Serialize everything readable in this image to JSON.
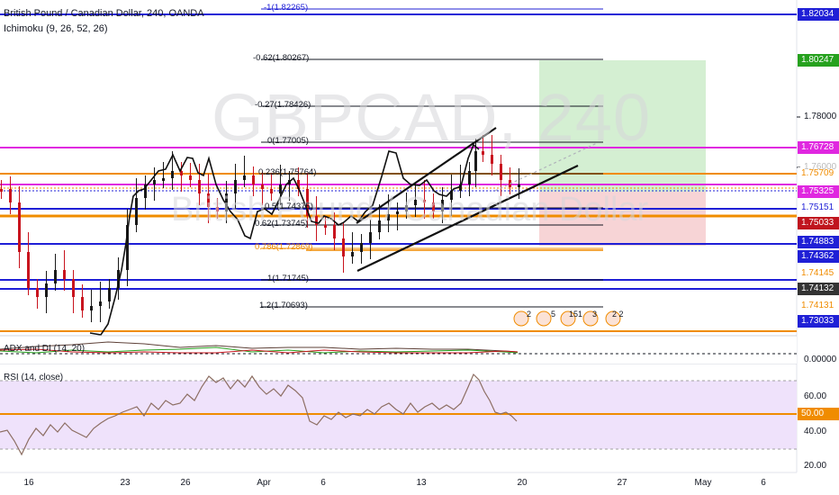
{
  "header": {
    "title": "British Pound / Canadian Dollar, 240, OANDA",
    "indicator": "Ichimoku (9, 26, 52, 26)"
  },
  "watermark": {
    "symbol": "GBPCAD, 240",
    "name": "British Pound / Canadian Dollar"
  },
  "price_tags": [
    {
      "label": "1.82034",
      "bg": "#1f1fd6",
      "fg": "#ffffff",
      "price": 1.82034
    },
    {
      "label": "1.80247",
      "bg": "#26a11e",
      "fg": "#ffffff",
      "price": 1.80247
    },
    {
      "label": "1.76728",
      "bg": "#e027e0",
      "fg": "#ffffff",
      "price": 1.76728
    },
    {
      "label": "1.75709",
      "bg": "#ffffff",
      "fg": "#f08c00",
      "price": 1.75709
    },
    {
      "label": "1.75325",
      "bg": "#e027e0",
      "fg": "#ffffff",
      "price": 1.75325
    },
    {
      "label": "1.75151",
      "bg": "#ffffff",
      "fg": "#1f1fd6",
      "price": 1.75151
    },
    {
      "label": "1.75033",
      "bg": "#c0141e",
      "fg": "#ffffff",
      "price": 1.75033
    },
    {
      "label": "1.74883",
      "bg": "#1f1fd6",
      "fg": "#ffffff",
      "price": 1.74883
    },
    {
      "label": "1.74362",
      "bg": "#1f1fd6",
      "fg": "#ffffff",
      "price": 1.74362
    },
    {
      "label": "1.74145",
      "bg": "#ffffff",
      "fg": "#f08c00",
      "price": 1.74145
    },
    {
      "label": "1.74132",
      "bg": "#333333",
      "fg": "#ffffff",
      "price": 1.74132
    },
    {
      "label": "1.74131",
      "bg": "#ffffff",
      "fg": "#f08c00",
      "price": 1.74131
    },
    {
      "label": "1.73033",
      "bg": "#1f1fd6",
      "fg": "#ffffff",
      "price": 1.73033
    }
  ],
  "price_axis_labels": [
    {
      "label": "1.78000",
      "price": 1.78
    },
    {
      "label": "1.76000",
      "price": 1.76
    }
  ],
  "fib_levels": [
    {
      "label": "-1(1.82265)"
    },
    {
      "label": "-0.62(1.80267)"
    },
    {
      "label": "-0.27(1.78426)"
    },
    {
      "label": "0(1.77005)"
    },
    {
      "label": "0.236(1.75764)"
    },
    {
      "label": "0.5(1.74375)"
    },
    {
      "label": "0.62(1.73745)"
    },
    {
      "label": "0.786(1.72869)"
    },
    {
      "label": "1(1.71745)"
    },
    {
      "label": "1.2(1.70693)"
    }
  ],
  "adx_pane": {
    "label": "ADX and DI (14, 20)",
    "axis_label": "0.00000"
  },
  "rsi_pane": {
    "label": "RSI (14, close)",
    "axis_labels": [
      "60.00",
      "50.00",
      "40.00",
      "20.00"
    ]
  },
  "x_axis": {
    "labels": [
      "16",
      "23",
      "26",
      "Apr",
      "6",
      "13",
      "20",
      "27",
      "May",
      "6"
    ]
  },
  "colors": {
    "blue_line": "#1f1fd6",
    "magenta_line": "#e027e0",
    "orange_line": "#f08c00",
    "profit_zone": "#d4efd2",
    "loss_zone": "#f7d4d6",
    "candle_up": "#1a1a1a",
    "candle_down": "#c8141e",
    "rsi_band": "#efe2fb",
    "rsi_line": "#8d6e63"
  },
  "event_markers": [
    "2",
    "5",
    "151",
    "3",
    "2 2"
  ]
}
